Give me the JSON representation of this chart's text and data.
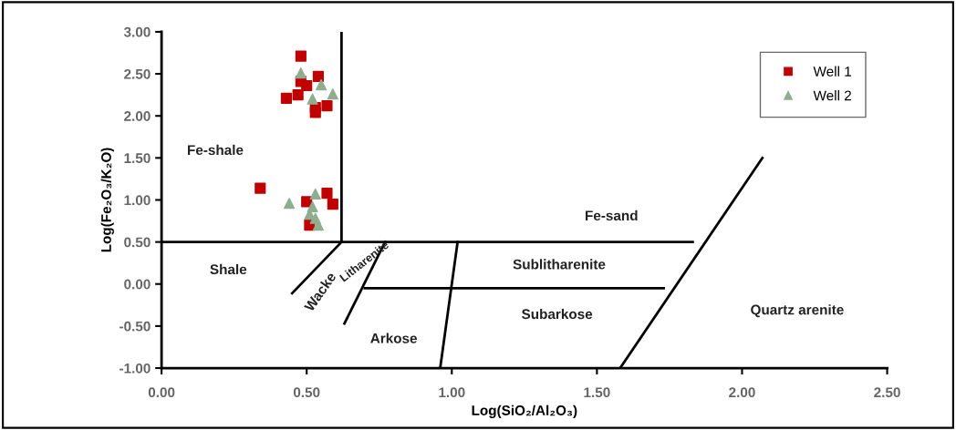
{
  "chart_data": {
    "type": "scatter",
    "xlabel": "Log(SiO₂/Al₂O₃)",
    "ylabel": "Log(Fe₂O₃/K₂O)",
    "xlim": [
      0,
      2.5
    ],
    "ylim": [
      -1,
      3
    ],
    "xticks": [
      {
        "value": 0,
        "label": "0.00"
      },
      {
        "value": 0.5,
        "label": "0.50"
      },
      {
        "value": 1,
        "label": "1.00"
      },
      {
        "value": 1.5,
        "label": "1.50"
      },
      {
        "value": 2,
        "label": "2.00"
      },
      {
        "value": 2.5,
        "label": "2.50"
      }
    ],
    "yticks": [
      {
        "value": -1,
        "label": "-1.00"
      },
      {
        "value": -0.5,
        "label": "-0.50"
      },
      {
        "value": 0,
        "label": "0.00"
      },
      {
        "value": 0.5,
        "label": "0.50"
      },
      {
        "value": 1,
        "label": "1.00"
      },
      {
        "value": 1.5,
        "label": "1.50"
      },
      {
        "value": 2,
        "label": "2.00"
      },
      {
        "value": 2.5,
        "label": "2.50"
      },
      {
        "value": 3,
        "label": "3.00"
      }
    ],
    "grid": false,
    "legend": "top right",
    "series": [
      {
        "type": "line",
        "color": "#000000",
        "marker": "none",
        "x": [
          0.62,
          0.62
        ],
        "values": [
          3.0,
          0.5
        ]
      },
      {
        "type": "line",
        "color": "#000000",
        "marker": "none",
        "x": [
          0,
          1.83
        ],
        "values": [
          0.5,
          0.5
        ]
      },
      {
        "type": "line",
        "color": "#000000",
        "marker": "none",
        "x": [
          0.62,
          0.45
        ],
        "values": [
          0.5,
          -0.11
        ]
      },
      {
        "type": "line",
        "color": "#000000",
        "marker": "none",
        "x": [
          0.77,
          0.63
        ],
        "values": [
          0.5,
          -0.47
        ]
      },
      {
        "type": "line",
        "color": "#000000",
        "marker": "none",
        "x": [
          1.02,
          0.96
        ],
        "values": [
          0.5,
          -1.0
        ]
      },
      {
        "type": "line",
        "color": "#000000",
        "marker": "none",
        "x": [
          0.7,
          1.73
        ],
        "values": [
          -0.05,
          -0.05
        ]
      },
      {
        "type": "line",
        "color": "#000000",
        "marker": "none",
        "x": [
          1.58,
          2.07
        ],
        "values": [
          -1.0,
          1.5
        ]
      },
      {
        "name": "Well 1",
        "color": "#c00000",
        "marker": "square",
        "x": [
          0.48,
          0.54,
          0.48,
          0.5,
          0.43,
          0.47,
          0.57,
          0.53,
          0.53,
          0.34,
          0.57,
          0.59,
          0.5,
          0.51
        ],
        "values": [
          2.71,
          2.47,
          2.41,
          2.36,
          2.21,
          2.25,
          2.12,
          2.04,
          2.1,
          1.14,
          1.08,
          0.95,
          0.98,
          0.7
        ]
      },
      {
        "name": "Well 2",
        "color": "#8fae8f",
        "marker": "triangle",
        "x": [
          0.48,
          0.55,
          0.59,
          0.52,
          0.44,
          0.53,
          0.52,
          0.51,
          0.53,
          0.54
        ],
        "values": [
          2.51,
          2.37,
          2.26,
          2.2,
          0.96,
          1.07,
          0.92,
          0.83,
          0.78,
          0.7
        ]
      }
    ],
    "annotations": [
      "Fe-shale",
      "Fe-sand",
      "Shale",
      "Wacke",
      "Litharenite",
      "Sublitharenite",
      "Subarkose",
      "Arkose",
      "Quartz arenite"
    ]
  }
}
